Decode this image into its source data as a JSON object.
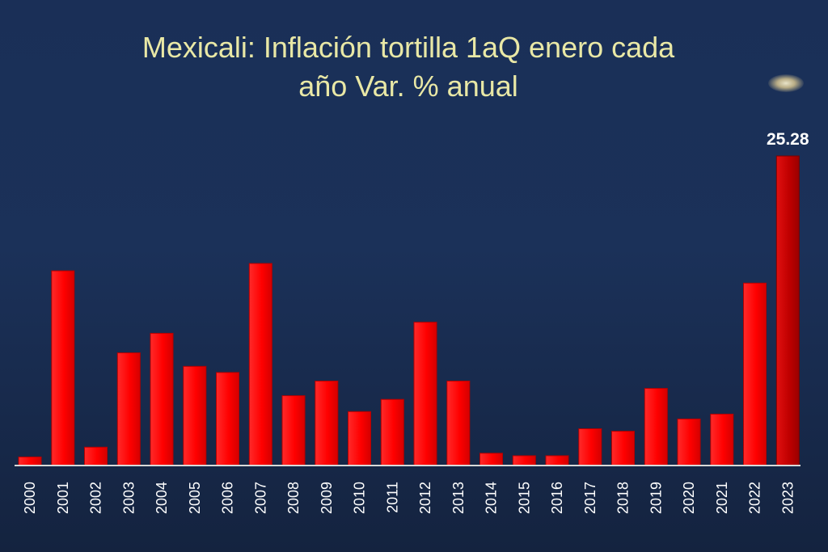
{
  "chart_data": {
    "type": "bar",
    "title_line1": "Mexicali: Inflación tortilla 1aQ enero cada",
    "title_line2": "año Var. % anual",
    "categories": [
      "2000",
      "2001",
      "2002",
      "2003",
      "2004",
      "2005",
      "2006",
      "2007",
      "2008",
      "2009",
      "2010",
      "2011",
      "2012",
      "2013",
      "2014",
      "2015",
      "2016",
      "2017",
      "2018",
      "2019",
      "2020",
      "2021",
      "2022",
      "2023"
    ],
    "values": [
      0.7,
      15.9,
      1.5,
      9.2,
      10.8,
      8.1,
      7.6,
      16.5,
      5.7,
      6.9,
      4.4,
      5.4,
      11.7,
      6.9,
      1.0,
      0.8,
      0.8,
      3.0,
      2.8,
      6.3,
      3.8,
      4.2,
      14.9,
      25.28
    ],
    "data_labels": [
      {
        "index": 23,
        "text": "25.28"
      }
    ],
    "ylim": [
      0,
      26
    ],
    "bar_color": "#ff0000",
    "highlight_color": "#c00000",
    "axis_color": "#d9d9d9",
    "title_color": "#e9e8a6",
    "background_color": "#1a2f57",
    "grid": false,
    "legend": "none"
  }
}
